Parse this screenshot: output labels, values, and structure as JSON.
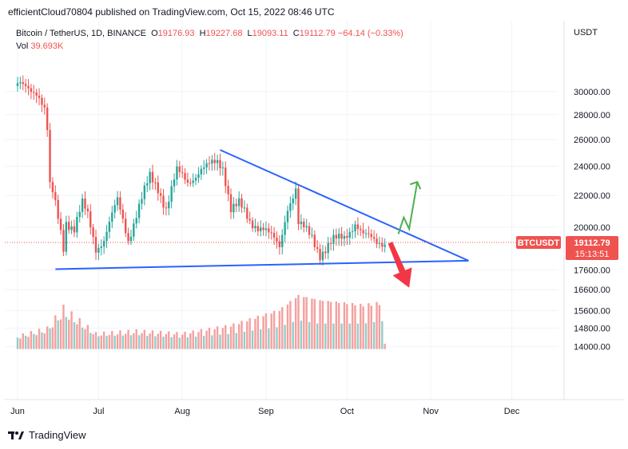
{
  "header": {
    "publisher_text": "efficientCloud70804 published on TradingView.com, Oct 15, 2022 08:46 UTC"
  },
  "legend": {
    "symbol": "Bitcoin / TetherUS, 1D, BINANCE",
    "open_label": "O",
    "open": "19176.93",
    "high_label": "H",
    "high": "19227.68",
    "low_label": "L",
    "low": "19093.11",
    "close_label": "C",
    "close": "19112.79",
    "change": "−64.14 (−0.33%)",
    "volume_label": "Vol",
    "volume": "39.693K"
  },
  "footer": {
    "brand": "TradingView"
  },
  "colors": {
    "up": "#26a69a",
    "down": "#ef5350",
    "up_vol": "#8fd0c9",
    "down_vol": "#f5a09e",
    "trendline": "#2962ff",
    "arrow_up": "#4caf50",
    "arrow_down": "#f23645",
    "grid": "#f0f3fa"
  },
  "chart_data": {
    "type": "candlestick",
    "symbol": "BTCUSDT",
    "currency": "USDT",
    "y_axis_log_scale": true,
    "y_axis_labels": [
      "30000.00",
      "28000.00",
      "26000.00",
      "24000.00",
      "22000.00",
      "20000.00",
      "17600.00",
      "16600.00",
      "15600.00",
      "14800.00",
      "14000.00"
    ],
    "x_axis_labels": [
      "Jun",
      "Jul",
      "Aug",
      "Sep",
      "Oct",
      "Nov",
      "Dec"
    ],
    "last_price": "19112.79",
    "last_price_badge": "BTCUSDT",
    "countdown": "15:13:51",
    "price_path": [
      [
        "2022-06-01",
        30500
      ],
      [
        "2022-06-05",
        30300
      ],
      [
        "2022-06-08",
        30100
      ],
      [
        "2022-06-10",
        29100
      ],
      [
        "2022-06-11",
        28400
      ],
      [
        "2022-06-12",
        26700
      ],
      [
        "2022-06-13",
        22500
      ],
      [
        "2022-06-14",
        22100
      ],
      [
        "2022-06-16",
        20600
      ],
      [
        "2022-06-18",
        18900
      ],
      [
        "2022-06-19",
        20400
      ],
      [
        "2022-06-22",
        19900
      ],
      [
        "2022-06-25",
        21400
      ],
      [
        "2022-06-27",
        20700
      ],
      [
        "2022-06-30",
        18800
      ],
      [
        "2022-07-03",
        19300
      ],
      [
        "2022-07-08",
        21600
      ],
      [
        "2022-07-12",
        19300
      ],
      [
        "2022-07-15",
        20800
      ],
      [
        "2022-07-20",
        23200
      ],
      [
        "2022-07-23",
        22500
      ],
      [
        "2022-07-26",
        21200
      ],
      [
        "2022-07-30",
        23600
      ],
      [
        "2022-08-03",
        22900
      ],
      [
        "2022-08-08",
        23800
      ],
      [
        "2022-08-10",
        23900
      ],
      [
        "2022-08-14",
        24300
      ],
      [
        "2022-08-16",
        24000
      ],
      [
        "2022-08-19",
        21200
      ],
      [
        "2022-08-22",
        21400
      ],
      [
        "2022-08-26",
        20300
      ],
      [
        "2022-08-31",
        20000
      ],
      [
        "2022-09-06",
        18800
      ],
      [
        "2022-09-09",
        21300
      ],
      [
        "2022-09-12",
        22400
      ],
      [
        "2022-09-13",
        20200
      ],
      [
        "2022-09-18",
        19400
      ],
      [
        "2022-09-21",
        18500
      ],
      [
        "2022-09-26",
        19200
      ],
      [
        "2022-09-30",
        19400
      ],
      [
        "2022-10-04",
        20300
      ],
      [
        "2022-10-07",
        19500
      ],
      [
        "2022-10-12",
        19150
      ],
      [
        "2022-10-14",
        19180
      ],
      [
        "2022-10-15",
        19113
      ]
    ],
    "volume_path": [
      [
        "2022-06-01",
        14400
      ],
      [
        "2022-06-12",
        14700
      ],
      [
        "2022-06-18",
        15500
      ],
      [
        "2022-06-30",
        14500
      ],
      [
        "2022-07-15",
        14600
      ],
      [
        "2022-08-01",
        14500
      ],
      [
        "2022-08-19",
        14800
      ],
      [
        "2022-09-06",
        15400
      ],
      [
        "2022-09-13",
        16000
      ],
      [
        "2022-09-21",
        15800
      ],
      [
        "2022-10-07",
        15600
      ],
      [
        "2022-10-14",
        15700
      ],
      [
        "2022-10-15",
        14100
      ]
    ],
    "annotations": {
      "upper_trendline": [
        [
          "2022-08-15",
          25200
        ],
        [
          "2022-11-15",
          18100
        ]
      ],
      "lower_trendline": [
        [
          "2022-06-15",
          17650
        ],
        [
          "2022-11-15",
          18100
        ]
      ],
      "bullish_arrow": [
        [
          "2022-10-20",
          19600
        ],
        [
          "2022-10-22",
          20600
        ],
        [
          "2022-10-24",
          19900
        ],
        [
          "2022-10-27",
          22900
        ]
      ],
      "bearish_arrow": [
        [
          "2022-10-17",
          19100
        ],
        [
          "2022-10-24",
          16700
        ]
      ]
    }
  }
}
